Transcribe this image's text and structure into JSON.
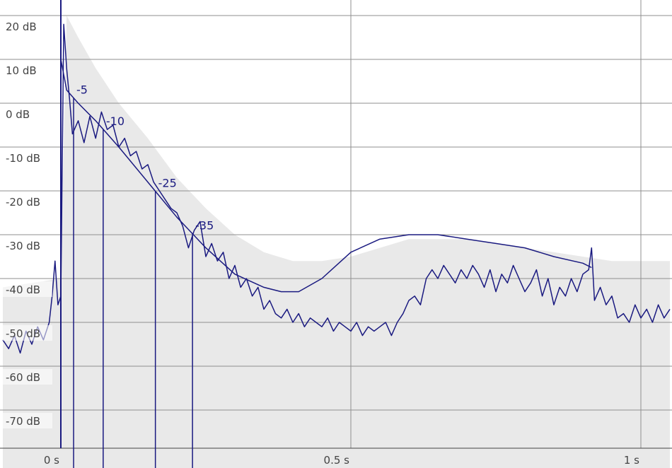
{
  "chart_data": {
    "type": "line",
    "title": "",
    "xlabel": "",
    "ylabel": "",
    "xlim": [
      -0.1,
      1.05
    ],
    "ylim": [
      -80,
      22
    ],
    "y_ticks": [
      20,
      10,
      0,
      -10,
      -20,
      -30,
      -40,
      -50,
      -60,
      -70
    ],
    "y_tick_labels": [
      "20 dB",
      "10 dB",
      "0 dB",
      "-10 dB",
      "-20 dB",
      "-30 dB",
      "-40 dB",
      "-50 dB",
      "-60 dB",
      "-70 dB"
    ],
    "x_ticks": [
      0,
      0.5,
      1
    ],
    "x_tick_labels": [
      "0 s",
      "0.5 s",
      "1 s"
    ],
    "grid": true,
    "colors": {
      "series": "#1a1a80",
      "background_fill": "#e9e9e9",
      "grid": "#8f8f8f",
      "axis": "#444444"
    },
    "series": [
      {
        "kind": "background_noise_envelope",
        "x": [
          -0.1,
          0.0,
          0.01,
          0.03,
          0.06,
          0.1,
          0.15,
          0.2,
          0.25,
          0.3,
          0.35,
          0.4,
          0.45,
          0.5,
          0.55,
          0.6,
          0.65,
          0.7,
          0.75,
          0.8,
          0.85,
          0.9,
          0.95,
          1.0,
          1.05
        ],
        "values": [
          -42,
          -40,
          20,
          15,
          8,
          0,
          -8,
          -17,
          -24,
          -30,
          -34,
          -36,
          -36,
          -35,
          -33,
          -31,
          -31,
          -31,
          -32,
          -33,
          -34,
          -35,
          -36,
          -36,
          -36
        ]
      },
      {
        "kind": "smoothed_envelope",
        "x": [
          0.0,
          0.01,
          0.03,
          0.06,
          0.1,
          0.15,
          0.2,
          0.25,
          0.3,
          0.35,
          0.38,
          0.41,
          0.45,
          0.5,
          0.55,
          0.6,
          0.65,
          0.7,
          0.75,
          0.8,
          0.85,
          0.9,
          0.915
        ],
        "values": [
          10,
          3,
          0,
          -4,
          -10,
          -18,
          -26,
          -33,
          -39,
          -42,
          -43,
          -43,
          -40,
          -34,
          -31,
          -30,
          -30,
          -31,
          -32,
          -33,
          -35,
          -36.5,
          -37.5
        ]
      },
      {
        "kind": "measured_level",
        "x": [
          -0.1,
          -0.09,
          -0.08,
          -0.07,
          -0.06,
          -0.05,
          -0.04,
          -0.03,
          -0.02,
          -0.015,
          -0.01,
          -0.005,
          0.0,
          0.005,
          0.01,
          0.015,
          0.02,
          0.03,
          0.04,
          0.05,
          0.06,
          0.07,
          0.08,
          0.09,
          0.1,
          0.11,
          0.12,
          0.13,
          0.14,
          0.15,
          0.16,
          0.17,
          0.18,
          0.19,
          0.2,
          0.21,
          0.22,
          0.23,
          0.24,
          0.25,
          0.26,
          0.27,
          0.28,
          0.29,
          0.3,
          0.31,
          0.32,
          0.33,
          0.34,
          0.35,
          0.36,
          0.37,
          0.38,
          0.39,
          0.4,
          0.41,
          0.42,
          0.43,
          0.44,
          0.45,
          0.46,
          0.47,
          0.48,
          0.49,
          0.5,
          0.51,
          0.52,
          0.53,
          0.54,
          0.55,
          0.56,
          0.57,
          0.58,
          0.59,
          0.6,
          0.61,
          0.62,
          0.63,
          0.64,
          0.65,
          0.66,
          0.67,
          0.68,
          0.69,
          0.7,
          0.71,
          0.72,
          0.73,
          0.74,
          0.75,
          0.76,
          0.77,
          0.78,
          0.79,
          0.8,
          0.81,
          0.82,
          0.83,
          0.84,
          0.85,
          0.86,
          0.87,
          0.88,
          0.89,
          0.9,
          0.91,
          0.915,
          0.92,
          0.93,
          0.94,
          0.95,
          0.96,
          0.97,
          0.98,
          0.99,
          1.0,
          1.01,
          1.02,
          1.03,
          1.04,
          1.05
        ],
        "values": [
          -54,
          -56,
          -53,
          -57,
          -52,
          -55,
          -51,
          -54,
          -50,
          -44,
          -36,
          -46,
          -44,
          18,
          8,
          1,
          -7,
          -4,
          -9,
          -3,
          -8,
          -2,
          -6,
          -5,
          -10,
          -8,
          -12,
          -11,
          -15,
          -14,
          -18,
          -20,
          -22,
          -24,
          -25,
          -28,
          -33,
          -29,
          -27,
          -35,
          -32,
          -36,
          -34,
          -40,
          -37,
          -42,
          -40,
          -44,
          -42,
          -47,
          -45,
          -48,
          -49,
          -47,
          -50,
          -48,
          -51,
          -49,
          -50,
          -51,
          -49,
          -52,
          -50,
          -51,
          -52,
          -50,
          -53,
          -51,
          -52,
          -51,
          -50,
          -53,
          -50,
          -48,
          -45,
          -44,
          -46,
          -40,
          -38,
          -40,
          -37,
          -39,
          -41,
          -38,
          -40,
          -37,
          -39,
          -42,
          -38,
          -43,
          -39,
          -41,
          -37,
          -40,
          -43,
          -41,
          -38,
          -44,
          -40,
          -46,
          -42,
          -44,
          -40,
          -43,
          -39,
          -38,
          -33,
          -45,
          -42,
          -46,
          -44,
          -49,
          -48,
          -50,
          -46,
          -49,
          -47,
          -50,
          -46,
          -49,
          -47
        ]
      }
    ],
    "markers": [
      {
        "label": "-5",
        "x": 0.022
      },
      {
        "label": "-10",
        "x": 0.073
      },
      {
        "label": "-25",
        "x": 0.163
      },
      {
        "label": "-35",
        "x": 0.227
      }
    ]
  }
}
